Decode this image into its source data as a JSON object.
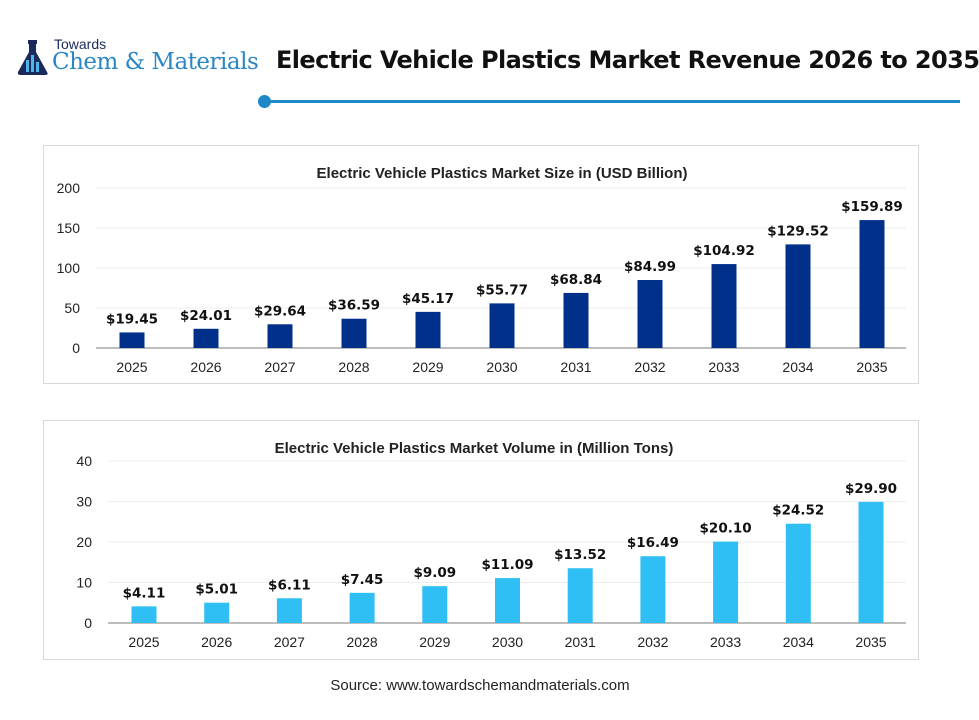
{
  "header": {
    "logo": {
      "top_text": "Towards",
      "main_text": "Chem & Materials"
    },
    "title": "Electric Vehicle Plastics Market Revenue 2026 to 2035",
    "accent_color": "#1e88c8"
  },
  "chart_data": [
    {
      "type": "bar",
      "title": "Electric Vehicle Plastics Market Size in (USD Billion)",
      "categories": [
        "2025",
        "2026",
        "2027",
        "2028",
        "2029",
        "2030",
        "2031",
        "2032",
        "2033",
        "2034",
        "2035"
      ],
      "values": [
        19.45,
        24.01,
        29.64,
        36.59,
        45.17,
        55.77,
        68.84,
        84.99,
        104.92,
        129.52,
        159.89
      ],
      "data_labels": [
        "$19.45",
        "$24.01",
        "$29.64",
        "$36.59",
        "$45.17",
        "$55.77",
        "$68.84",
        "$84.99",
        "$104.92",
        "$129.52",
        "$159.89"
      ],
      "ylim": [
        0,
        200
      ],
      "yticks": [
        "0",
        "50",
        "100",
        "150",
        "200"
      ],
      "grid": true,
      "color": "#00308a",
      "xlabel": "",
      "ylabel": ""
    },
    {
      "type": "bar",
      "title": "Electric Vehicle Plastics Market Volume in (Million Tons)",
      "categories": [
        "2025",
        "2026",
        "2027",
        "2028",
        "2029",
        "2030",
        "2031",
        "2032",
        "2033",
        "2034",
        "2035"
      ],
      "values": [
        4.11,
        5.01,
        6.11,
        7.45,
        9.09,
        11.09,
        13.52,
        16.49,
        20.1,
        24.52,
        29.9
      ],
      "data_labels": [
        "$4.11",
        "$5.01",
        "$6.11",
        "$7.45",
        "$9.09",
        "$11.09",
        "$13.52",
        "$16.49",
        "$20.10",
        "$24.52",
        "$29.90"
      ],
      "ylim": [
        0,
        40
      ],
      "yticks": [
        "0",
        "10",
        "20",
        "30",
        "40"
      ],
      "grid": true,
      "color": "#30bff5",
      "xlabel": "",
      "ylabel": ""
    }
  ],
  "footer": {
    "source": "Source: www.towardschemandmaterials.com"
  }
}
